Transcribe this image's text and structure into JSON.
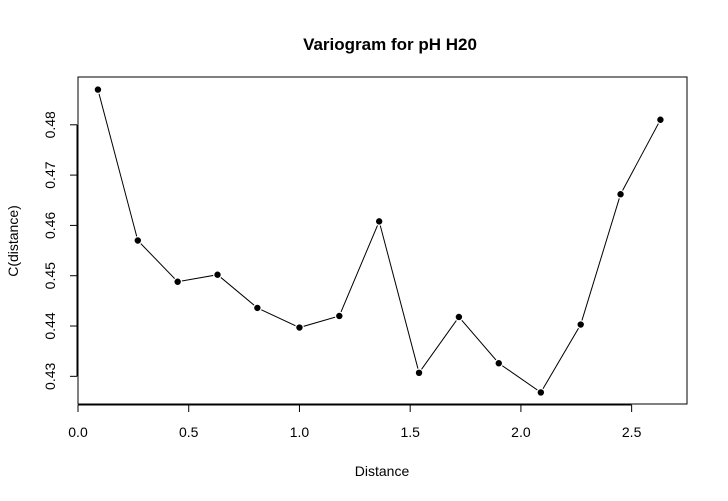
{
  "chart_data": {
    "type": "line",
    "title": "Variogram for pH H20",
    "xlabel": "Distance",
    "ylabel": "C(distance)",
    "xlim": [
      0.0,
      2.75
    ],
    "ylim": [
      0.4245,
      0.4895
    ],
    "x_ticks": [
      0.0,
      0.5,
      1.0,
      1.5,
      2.0,
      2.5
    ],
    "x_tick_labels": [
      "0.0",
      "0.5",
      "1.0",
      "1.5",
      "2.0",
      "2.5"
    ],
    "y_ticks": [
      0.43,
      0.44,
      0.45,
      0.46,
      0.47,
      0.48
    ],
    "y_tick_labels": [
      "0.43",
      "0.44",
      "0.45",
      "0.46",
      "0.47",
      "0.48"
    ],
    "grid": false,
    "legend": "none",
    "line_color": "#000000",
    "point_color": "#000000",
    "series": [
      {
        "x": [
          0.09,
          0.27,
          0.45,
          0.63,
          0.81,
          1.0,
          1.18,
          1.36,
          1.54,
          1.72,
          1.9,
          2.09,
          2.27,
          2.45,
          2.63
        ],
        "values": [
          0.487,
          0.457,
          0.4488,
          0.4502,
          0.4436,
          0.4397,
          0.442,
          0.4608,
          0.4307,
          0.4418,
          0.4326,
          0.4268,
          0.4403,
          0.4662,
          0.481
        ]
      }
    ]
  }
}
